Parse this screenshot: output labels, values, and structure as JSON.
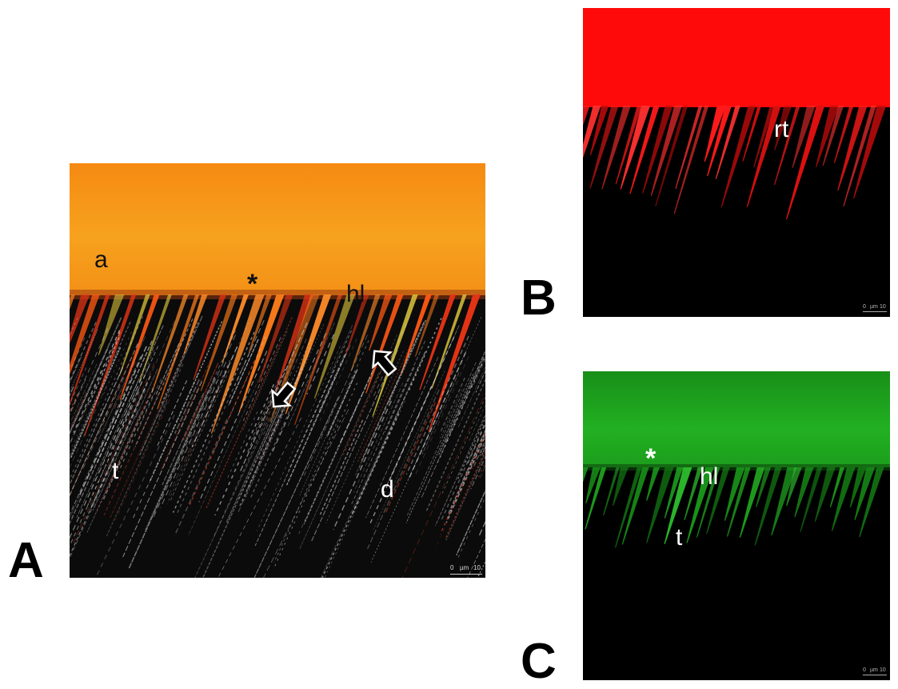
{
  "panels": [
    {
      "letter": "A",
      "labels": {
        "a": "a",
        "asterisk": "*",
        "hl": "hl",
        "t": "t",
        "d": "d"
      },
      "scale": {
        "zero": "0",
        "unit": "µm",
        "value": "10"
      },
      "colors": {
        "top": "#f79a18",
        "interface": "#e8461a",
        "bottom": "#0b0b0b"
      }
    },
    {
      "letter": "B",
      "labels": {
        "rt": "rt"
      },
      "scale": {
        "zero": "0",
        "unit": "µm",
        "value": "10"
      },
      "colors": {
        "top": "#ff0a0a",
        "bottom": "#000000"
      }
    },
    {
      "letter": "C",
      "labels": {
        "asterisk": "*",
        "hl": "hl",
        "t": "t"
      },
      "scale": {
        "zero": "0",
        "unit": "µm",
        "value": "10"
      },
      "colors": {
        "top": "#1fa81f",
        "bottom": "#000000"
      }
    }
  ]
}
